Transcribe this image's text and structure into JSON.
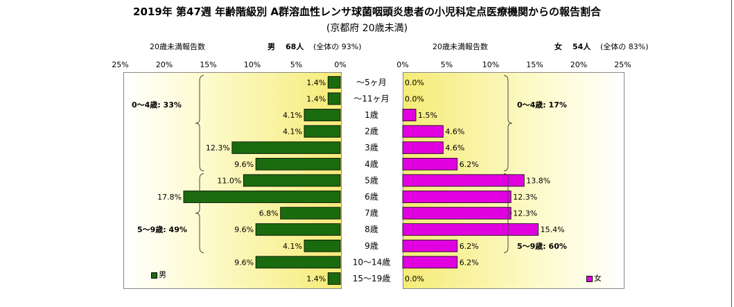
{
  "title": "2019年 第47週 年齢階級別 A群溶血性レンサ球菌咽頭炎患者の小児科定点医療機関からの報告割合",
  "subtitle": "(京都府 20歳未満)",
  "male_header": {
    "count_label": "20歳未満報告数",
    "sex": "男",
    "count": "68人",
    "share": "(全体の 93%)"
  },
  "female_header": {
    "count_label": "20歳未満報告数",
    "sex": "女",
    "count": "54人",
    "share": "(全体の 83%)"
  },
  "male_ticks": [
    "25%",
    "20%",
    "15%",
    "10%",
    "5%",
    "0%"
  ],
  "female_ticks": [
    "0%",
    "5%",
    "10%",
    "15%",
    "20%",
    "25%"
  ],
  "brace_labels": {
    "male_0_4": "0～4歳: 33%",
    "male_5_9": "5～9歳: 49%",
    "female_0_4": "0～4歳: 17%",
    "female_5_9": "5～9歳: 60%"
  },
  "legend": {
    "male": "男",
    "female": "女"
  },
  "colors": {
    "male": "#1a6b0e",
    "female": "#e000e0",
    "gradient": "#f5eb77"
  },
  "chart_data": {
    "type": "bar",
    "orientation": "horizontal-butterfly",
    "categories": [
      "～5ヶ月",
      "～11ヶ月",
      "1歳",
      "2歳",
      "3歳",
      "4歳",
      "5歳",
      "6歳",
      "7歳",
      "8歳",
      "9歳",
      "10～14歳",
      "15～19歳"
    ],
    "series": [
      {
        "name": "男",
        "values": [
          1.4,
          1.4,
          4.1,
          4.1,
          12.3,
          9.6,
          11.0,
          17.8,
          6.8,
          9.6,
          4.1,
          9.6,
          1.4
        ],
        "labels": [
          "1.4%",
          "1.4%",
          "4.1%",
          "4.1%",
          "12.3%",
          "9.6%",
          "11.0%",
          "17.8%",
          "6.8%",
          "9.6%",
          "4.1%",
          "9.6%",
          "1.4%"
        ]
      },
      {
        "name": "女",
        "values": [
          0.0,
          0.0,
          1.5,
          4.6,
          4.6,
          6.2,
          13.8,
          12.3,
          12.3,
          15.4,
          6.2,
          6.2,
          0.0
        ],
        "labels": [
          "0.0%",
          "0.0%",
          "1.5%",
          "4.6%",
          "4.6%",
          "6.2%",
          "13.8%",
          "12.3%",
          "12.3%",
          "15.4%",
          "6.2%",
          "6.2%",
          "0.0%"
        ]
      }
    ],
    "xlim": [
      0,
      25
    ],
    "unit": "%"
  }
}
